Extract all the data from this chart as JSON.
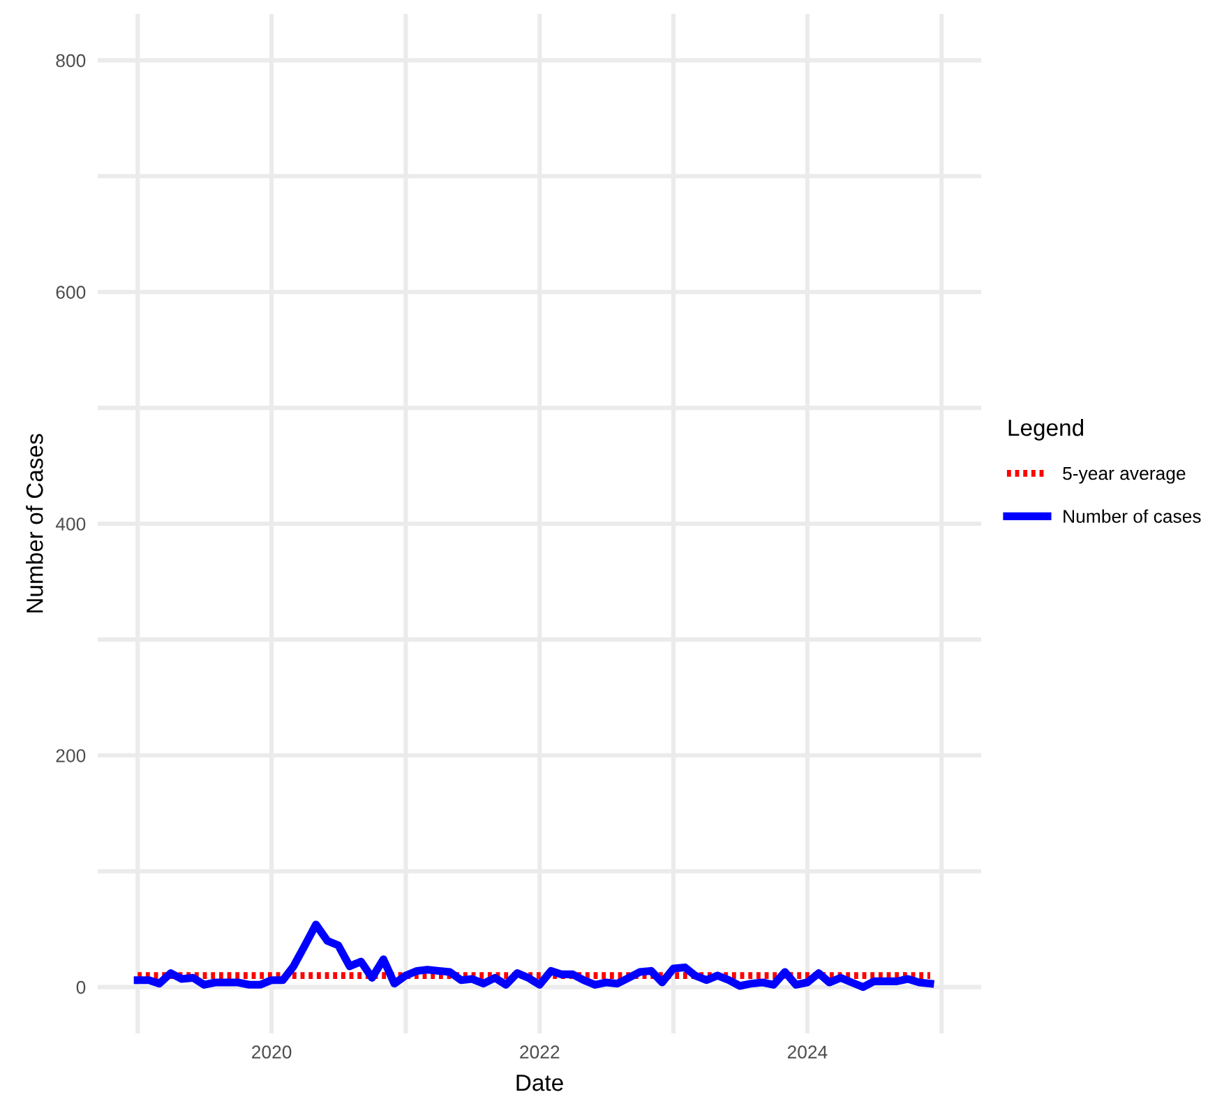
{
  "chart_data": {
    "type": "line",
    "xlabel": "Date",
    "ylabel": "Number of Cases",
    "legend_title": "Legend",
    "legend": "right",
    "grid": true,
    "x": [
      "2019-01",
      "2019-02",
      "2019-03",
      "2019-04",
      "2019-05",
      "2019-06",
      "2019-07",
      "2019-08",
      "2019-09",
      "2019-10",
      "2019-11",
      "2019-12",
      "2020-01",
      "2020-02",
      "2020-03",
      "2020-04",
      "2020-05",
      "2020-06",
      "2020-07",
      "2020-08",
      "2020-09",
      "2020-10",
      "2020-11",
      "2020-12",
      "2021-01",
      "2021-02",
      "2021-03",
      "2021-04",
      "2021-05",
      "2021-06",
      "2021-07",
      "2021-08",
      "2021-09",
      "2021-10",
      "2021-11",
      "2021-12",
      "2022-01",
      "2022-02",
      "2022-03",
      "2022-04",
      "2022-05",
      "2022-06",
      "2022-07",
      "2022-08",
      "2022-09",
      "2022-10",
      "2022-11",
      "2022-12",
      "2023-01",
      "2023-02",
      "2023-03",
      "2023-04",
      "2023-05",
      "2023-06",
      "2023-07",
      "2023-08",
      "2023-09",
      "2023-10",
      "2023-11",
      "2023-12",
      "2024-01",
      "2024-02",
      "2024-03",
      "2024-04",
      "2024-05",
      "2024-06",
      "2024-07",
      "2024-08",
      "2024-09",
      "2024-10",
      "2024-11",
      "2024-12"
    ],
    "series": [
      {
        "name": "5-year average",
        "color": "#ff0000",
        "line_style": "dotted",
        "values": [
          10,
          10,
          10,
          10,
          10,
          10,
          10,
          10,
          10,
          10,
          10,
          10,
          10,
          10,
          10,
          10,
          10,
          10,
          10,
          10,
          10,
          10,
          10,
          10,
          10,
          10,
          10,
          10,
          10,
          10,
          10,
          10,
          10,
          10,
          10,
          10,
          10,
          10,
          10,
          10,
          10,
          10,
          10,
          10,
          10,
          10,
          10,
          10,
          10,
          10,
          10,
          10,
          10,
          10,
          10,
          10,
          10,
          10,
          10,
          10,
          10,
          10,
          10,
          10,
          10,
          10,
          10,
          10,
          10,
          10,
          10,
          10
        ]
      },
      {
        "name": "Number of cases",
        "color": "#0000ff",
        "line_style": "solid",
        "values": [
          6,
          6,
          3,
          12,
          7,
          8,
          2,
          4,
          4,
          4,
          2,
          2,
          6,
          6,
          18,
          36,
          54,
          40,
          36,
          18,
          22,
          8,
          24,
          3,
          10,
          14,
          15,
          14,
          13,
          6,
          7,
          3,
          8,
          2,
          12,
          8,
          2,
          14,
          11,
          11,
          6,
          2,
          4,
          3,
          8,
          13,
          14,
          4,
          16,
          17,
          10,
          6,
          10,
          6,
          1,
          3,
          4,
          2,
          13,
          2,
          4,
          12,
          4,
          8,
          4,
          0,
          5,
          5,
          5,
          7,
          4,
          3
        ]
      }
    ],
    "xlim": [
      "2018-09-14",
      "2025-04-19"
    ],
    "xticks": [
      {
        "value": "2019-01-01",
        "label": null
      },
      "2020",
      {
        "value": "2021-01-01",
        "label": null
      },
      "2022",
      {
        "value": "2023-01-01",
        "label": null
      },
      "2024",
      {
        "value": "2025-01-01",
        "label": null
      }
    ],
    "ylim": [
      -40,
      840
    ],
    "yticks": [
      0,
      {
        "value": 100,
        "label": null
      },
      200,
      {
        "value": 300,
        "label": null
      },
      400,
      {
        "value": 500,
        "label": null
      },
      600,
      {
        "value": 700,
        "label": null
      },
      800
    ]
  }
}
